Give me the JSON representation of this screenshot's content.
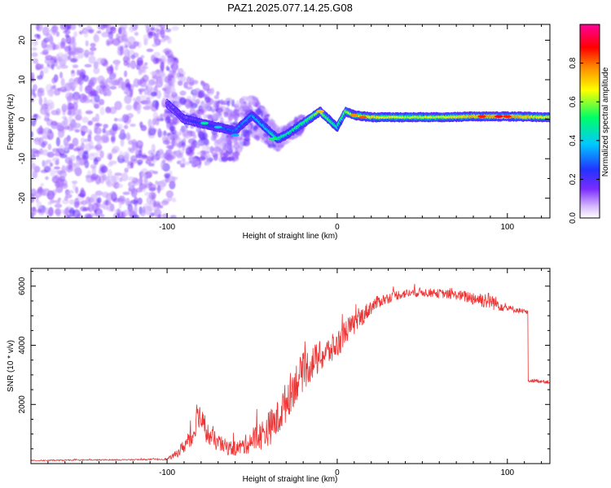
{
  "title": "PAZ1.2025.077.14.25.G08",
  "chart_data": [
    {
      "type": "heatmap",
      "xlabel": "Height of straight line (km)",
      "ylabel": "Frequency (Hz)",
      "xlim": [
        -180,
        125
      ],
      "ylim": [
        -25,
        24
      ],
      "x_ticks": [
        -100,
        0,
        100
      ],
      "x_tick_labels": [
        "-100",
        "0",
        "100"
      ],
      "y_ticks": [
        -20,
        -10,
        0,
        10,
        20
      ],
      "y_tick_labels": [
        "-20",
        "-10",
        "0",
        "10",
        "20"
      ],
      "colorbar": {
        "label": "Normalized spectral amplitude",
        "range": [
          0,
          1
        ],
        "ticks": [
          0.0,
          0.2,
          0.4,
          0.6,
          0.8
        ],
        "tick_labels": [
          "0.0",
          "0.2",
          "0.4",
          "0.6",
          "0.8"
        ],
        "colormap": [
          "#ffffff",
          "#7b2cff",
          "#2233ff",
          "#00c8ff",
          "#00ff66",
          "#ffff00",
          "#ff8800",
          "#ff0000",
          "#ff00aa"
        ]
      },
      "ridge": {
        "x": [
          -100,
          -90,
          -80,
          -70,
          -60,
          -50,
          -40,
          -35,
          -30,
          -20,
          -10,
          -5,
          0,
          5,
          10,
          20,
          40,
          60,
          80,
          100,
          125
        ],
        "y": [
          4,
          0,
          -1,
          -2,
          -3,
          1,
          -3,
          -5,
          -4,
          -1,
          2,
          0,
          -2,
          2,
          1,
          0.5,
          0.5,
          0.5,
          0.7,
          0.7,
          0.5
        ],
        "amplitude": [
          0.15,
          0.2,
          0.25,
          0.25,
          0.3,
          0.35,
          0.4,
          0.5,
          0.45,
          0.5,
          0.6,
          0.5,
          0.45,
          0.55,
          0.6,
          0.65,
          0.6,
          0.6,
          0.7,
          0.75,
          0.6
        ]
      },
      "noise_region_x": [
        -180,
        -95
      ]
    },
    {
      "type": "line",
      "xlabel": "Height of straight line (km)",
      "ylabel": "SNR (10 * v/v)",
      "xlim": [
        -180,
        125
      ],
      "ylim": [
        0,
        6600
      ],
      "x_ticks": [
        -100,
        0,
        100
      ],
      "x_tick_labels": [
        "-100",
        "0",
        "100"
      ],
      "y_ticks": [
        2000,
        4000,
        6000
      ],
      "y_tick_labels": [
        "2000",
        "4000",
        "6000"
      ],
      "color": "#ee3333",
      "series": [
        {
          "x": [
            -180,
            -150,
            -120,
            -100,
            -95,
            -90,
            -85,
            -82,
            -78,
            -75,
            -70,
            -65,
            -60,
            -55,
            -50,
            -45,
            -40,
            -35,
            -30,
            -25,
            -20,
            -15,
            -10,
            -5,
            0,
            5,
            10,
            15,
            20,
            25,
            30,
            35,
            40,
            50,
            60,
            70,
            80,
            90,
            100,
            110,
            112,
            113,
            118,
            125
          ],
          "y": [
            100,
            120,
            130,
            150,
            300,
            600,
            900,
            1800,
            1200,
            900,
            700,
            550,
            500,
            600,
            800,
            950,
            1200,
            1500,
            2100,
            2700,
            3100,
            3400,
            3600,
            3800,
            4000,
            4500,
            4700,
            5000,
            5300,
            5500,
            5600,
            5700,
            5750,
            5800,
            5750,
            5700,
            5600,
            5500,
            5250,
            5150,
            5100,
            2800,
            2800,
            2750
          ],
          "noise": [
            20,
            20,
            20,
            30,
            120,
            250,
            450,
            500,
            400,
            350,
            300,
            260,
            250,
            300,
            450,
            500,
            600,
            650,
            700,
            700,
            650,
            600,
            550,
            500,
            500,
            420,
            360,
            320,
            260,
            220,
            180,
            170,
            160,
            150,
            150,
            160,
            250,
            300,
            120,
            80,
            80,
            60,
            60,
            60
          ]
        }
      ]
    }
  ]
}
